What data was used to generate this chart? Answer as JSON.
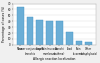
{
  "categories": [
    "Nose",
    "Lower conjunctiva/\nbronchia",
    "Larynx",
    "Skin/mucous\nmembrane",
    "Bronchi\n(asthma)",
    "Food",
    "Skin\n(eczema)",
    "Other\n(anaphylaxis)"
  ],
  "values": [
    65,
    47,
    42,
    40,
    40,
    22,
    7,
    4
  ],
  "bar_color": "#6baed6",
  "bar_edge_color": "#4292c6",
  "ylabel": "Percentage of cases (%)",
  "xlabel": "Allergic reaction localization",
  "ylim": [
    0,
    70
  ],
  "yticks": [
    0,
    10,
    20,
    30,
    40,
    50,
    60,
    70
  ],
  "grid_color": "#dddddd",
  "background_color": "#f0f0f0",
  "plot_bg_color": "#ffffff",
  "label_fontsize": 1.8,
  "ylabel_fontsize": 2.2,
  "xlabel_fontsize": 2.2,
  "tick_fontsize": 2.0
}
